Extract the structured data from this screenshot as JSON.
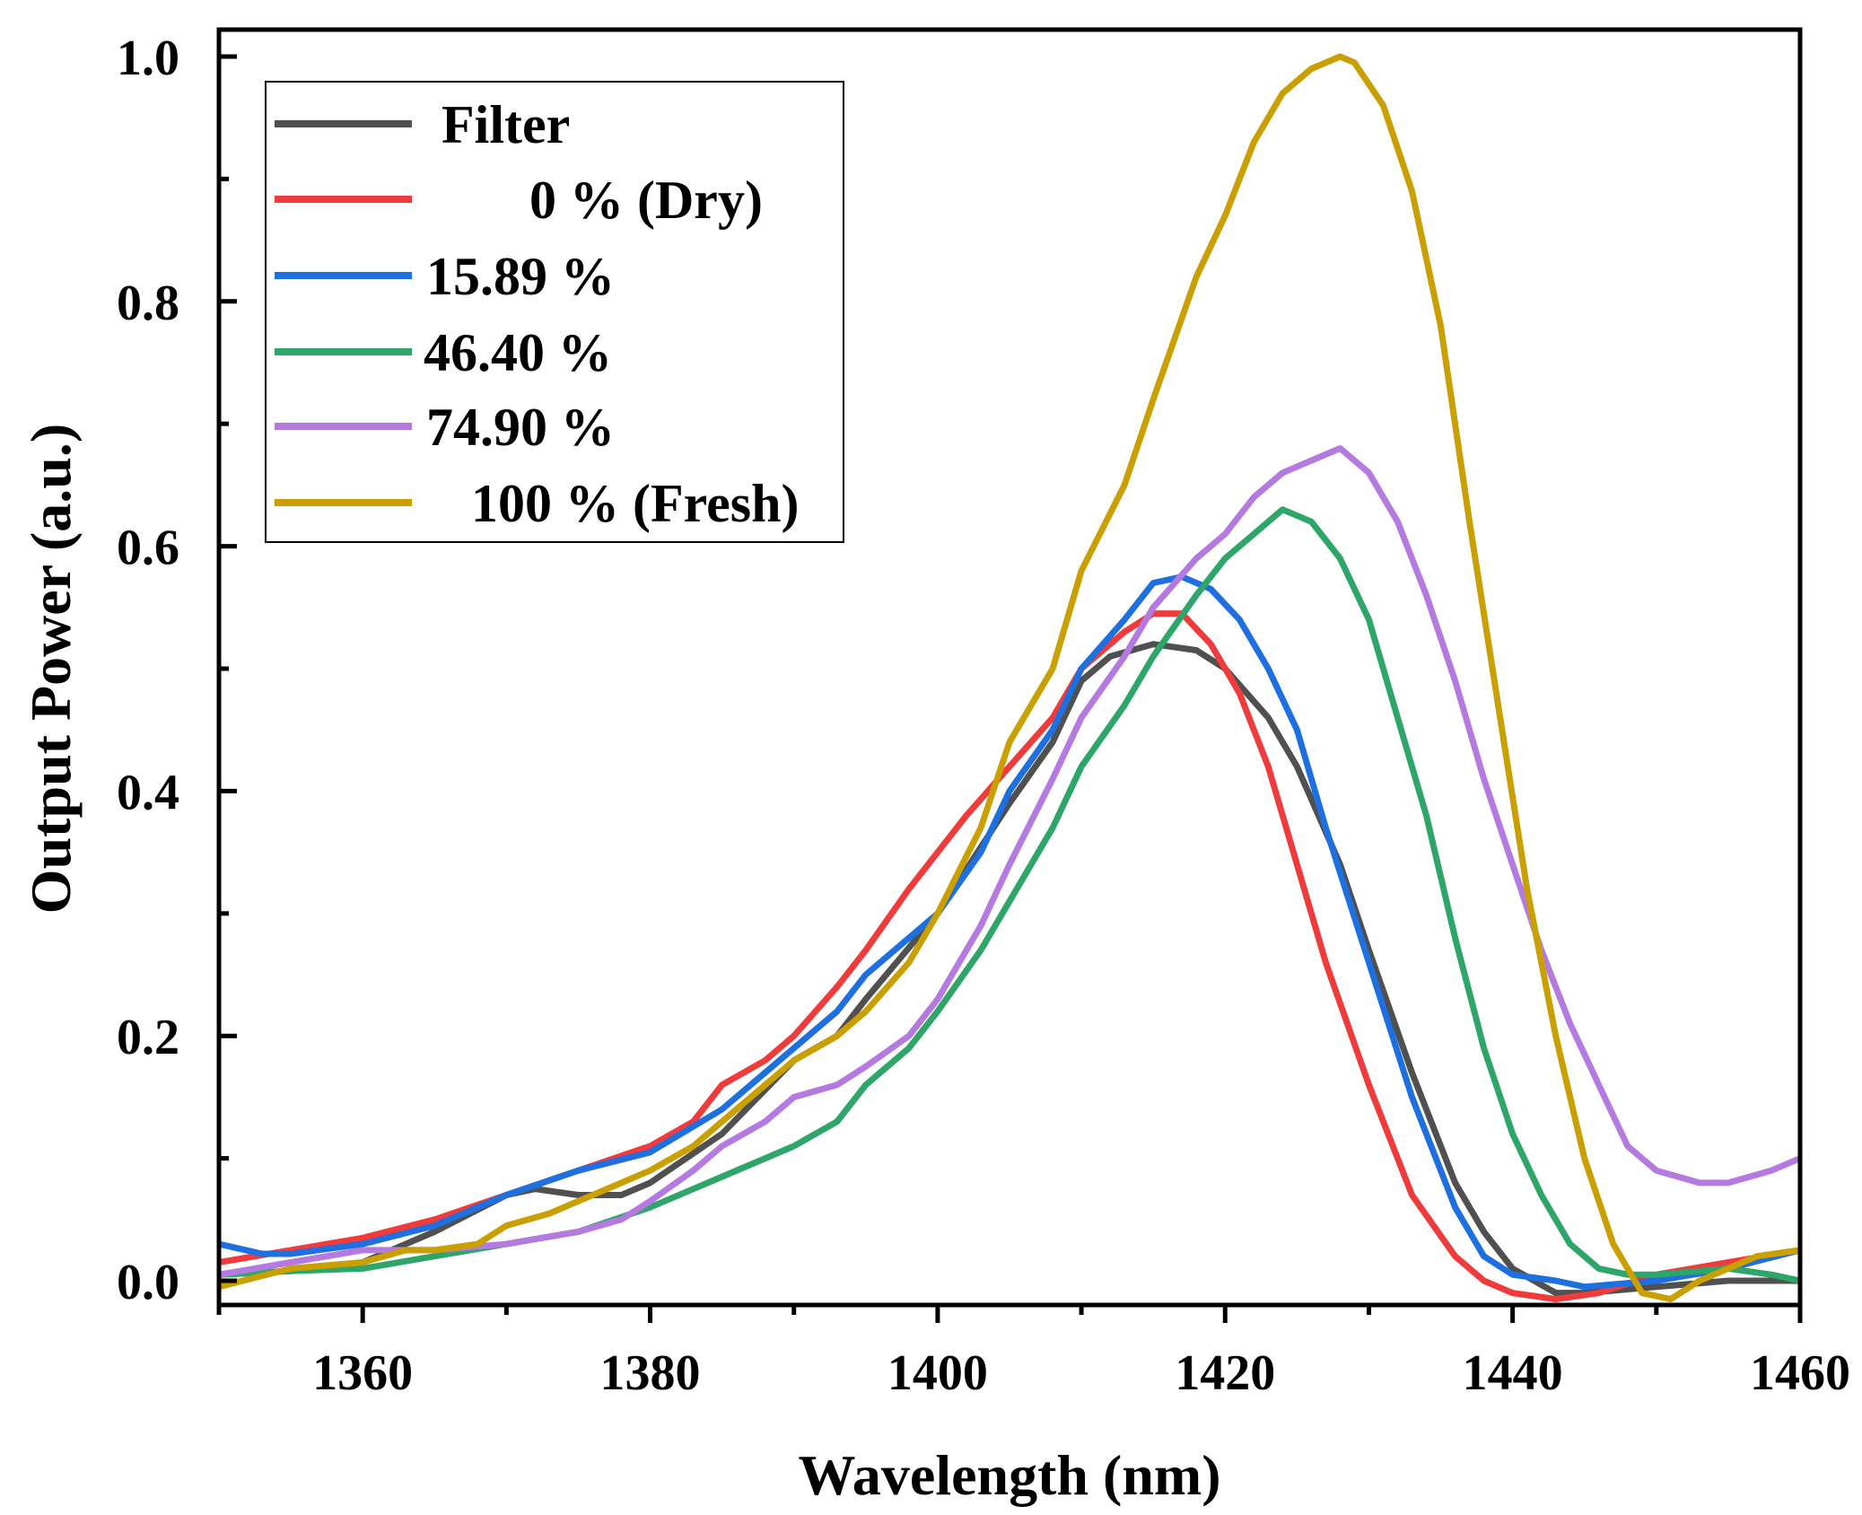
{
  "chart_data": {
    "type": "line",
    "title": "",
    "xlabel": "Wavelength (nm)",
    "ylabel": "Output Power (a.u.)",
    "xlim": [
      1350,
      1460
    ],
    "ylim": [
      -0.02,
      1.02
    ],
    "xticks": [
      1360,
      1380,
      1400,
      1420,
      1440,
      1460
    ],
    "xtick_labels": [
      "1360",
      "1380",
      "1400",
      "1420",
      "1440",
      "1460"
    ],
    "yticks": [
      0.0,
      0.2,
      0.4,
      0.6,
      0.8,
      1.0
    ],
    "ytick_labels": [
      "0.0",
      "0.2",
      "0.4",
      "0.6",
      "0.8",
      "1.0"
    ],
    "grid": false,
    "legend_placement": "top-left",
    "series": [
      {
        "name": "Filter",
        "color": "#505050",
        "x": [
          1350,
          1355,
          1360,
          1365,
          1370,
          1372,
          1375,
          1378,
          1380,
          1385,
          1390,
          1393,
          1395,
          1400,
          1405,
          1408,
          1410,
          1412,
          1415,
          1418,
          1420,
          1423,
          1425,
          1428,
          1430,
          1433,
          1436,
          1438,
          1440,
          1443,
          1445,
          1450,
          1455,
          1460
        ],
        "y": [
          0.005,
          0.008,
          0.015,
          0.04,
          0.07,
          0.075,
          0.07,
          0.07,
          0.08,
          0.12,
          0.18,
          0.2,
          0.23,
          0.3,
          0.39,
          0.44,
          0.49,
          0.51,
          0.52,
          0.515,
          0.5,
          0.46,
          0.42,
          0.34,
          0.27,
          0.17,
          0.08,
          0.04,
          0.01,
          -0.01,
          -0.01,
          -0.005,
          0,
          0
        ]
      },
      {
        "name": "0 % (Dry)",
        "color": "#ef3b3b",
        "x": [
          1350,
          1355,
          1360,
          1365,
          1370,
          1375,
          1380,
          1383,
          1385,
          1388,
          1390,
          1393,
          1395,
          1398,
          1400,
          1402,
          1405,
          1408,
          1410,
          1413,
          1415,
          1417,
          1419,
          1421,
          1423,
          1425,
          1427,
          1430,
          1433,
          1436,
          1438,
          1440,
          1443,
          1446,
          1450,
          1455,
          1460
        ],
        "y": [
          0.015,
          0.025,
          0.035,
          0.05,
          0.07,
          0.09,
          0.11,
          0.13,
          0.16,
          0.18,
          0.2,
          0.24,
          0.27,
          0.32,
          0.35,
          0.38,
          0.42,
          0.46,
          0.5,
          0.53,
          0.545,
          0.545,
          0.52,
          0.48,
          0.42,
          0.34,
          0.26,
          0.16,
          0.07,
          0.02,
          0,
          -0.01,
          -0.015,
          -0.01,
          0.005,
          0.015,
          0.025
        ]
      },
      {
        "name": "15.89 %",
        "color": "#1e6fe0",
        "x": [
          1350,
          1353,
          1355,
          1360,
          1365,
          1370,
          1375,
          1380,
          1385,
          1388,
          1390,
          1393,
          1395,
          1398,
          1400,
          1403,
          1405,
          1408,
          1410,
          1413,
          1415,
          1417,
          1419,
          1421,
          1423,
          1425,
          1427,
          1430,
          1433,
          1436,
          1438,
          1440,
          1443,
          1445,
          1450,
          1455,
          1460
        ],
        "y": [
          0.03,
          0.022,
          0.022,
          0.03,
          0.045,
          0.07,
          0.09,
          0.105,
          0.14,
          0.17,
          0.19,
          0.22,
          0.25,
          0.28,
          0.3,
          0.35,
          0.4,
          0.45,
          0.5,
          0.54,
          0.57,
          0.575,
          0.565,
          0.54,
          0.5,
          0.45,
          0.37,
          0.26,
          0.15,
          0.06,
          0.02,
          0.005,
          0,
          -0.005,
          0,
          0.01,
          0.025
        ]
      },
      {
        "name": "46.40 %",
        "color": "#2ea66a",
        "x": [
          1350,
          1355,
          1360,
          1365,
          1370,
          1375,
          1380,
          1385,
          1388,
          1390,
          1393,
          1395,
          1398,
          1400,
          1403,
          1405,
          1408,
          1410,
          1413,
          1415,
          1418,
          1420,
          1422,
          1424,
          1426,
          1428,
          1430,
          1432,
          1434,
          1436,
          1438,
          1440,
          1442,
          1444,
          1446,
          1448,
          1450,
          1455,
          1458,
          1460
        ],
        "y": [
          0.005,
          0.008,
          0.01,
          0.02,
          0.03,
          0.04,
          0.06,
          0.085,
          0.1,
          0.11,
          0.13,
          0.16,
          0.19,
          0.22,
          0.27,
          0.31,
          0.37,
          0.42,
          0.47,
          0.51,
          0.56,
          0.59,
          0.61,
          0.63,
          0.62,
          0.59,
          0.54,
          0.46,
          0.38,
          0.28,
          0.19,
          0.12,
          0.07,
          0.03,
          0.01,
          0.005,
          0.005,
          0.01,
          0.005,
          0
        ]
      },
      {
        "name": "74.90 %",
        "color": "#b57ae0",
        "x": [
          1350,
          1355,
          1360,
          1365,
          1370,
          1375,
          1378,
          1380,
          1383,
          1385,
          1388,
          1390,
          1393,
          1395,
          1398,
          1400,
          1403,
          1405,
          1408,
          1410,
          1413,
          1415,
          1418,
          1420,
          1422,
          1424,
          1426,
          1428,
          1430,
          1432,
          1434,
          1436,
          1438,
          1440,
          1442,
          1444,
          1446,
          1448,
          1450,
          1453,
          1455,
          1458,
          1460
        ],
        "y": [
          0.005,
          0.015,
          0.025,
          0.025,
          0.03,
          0.04,
          0.05,
          0.065,
          0.09,
          0.11,
          0.13,
          0.15,
          0.16,
          0.175,
          0.2,
          0.23,
          0.29,
          0.34,
          0.41,
          0.46,
          0.51,
          0.55,
          0.59,
          0.61,
          0.64,
          0.66,
          0.67,
          0.68,
          0.66,
          0.62,
          0.56,
          0.49,
          0.41,
          0.34,
          0.27,
          0.21,
          0.16,
          0.11,
          0.09,
          0.08,
          0.08,
          0.09,
          0.1
        ]
      },
      {
        "name": "100 % (Fresh)",
        "color": "#c9a000",
        "x": [
          1350,
          1355,
          1360,
          1363,
          1365,
          1368,
          1370,
          1373,
          1375,
          1378,
          1380,
          1383,
          1385,
          1388,
          1390,
          1393,
          1395,
          1398,
          1400,
          1403,
          1405,
          1408,
          1410,
          1413,
          1415,
          1418,
          1420,
          1422,
          1424,
          1426,
          1428,
          1429,
          1431,
          1433,
          1435,
          1437,
          1439,
          1441,
          1443,
          1445,
          1447,
          1449,
          1451,
          1453,
          1455,
          1457,
          1460
        ],
        "y": [
          -0.005,
          0.01,
          0.015,
          0.025,
          0.025,
          0.03,
          0.045,
          0.055,
          0.065,
          0.08,
          0.09,
          0.11,
          0.13,
          0.16,
          0.18,
          0.2,
          0.22,
          0.26,
          0.3,
          0.37,
          0.44,
          0.5,
          0.58,
          0.65,
          0.72,
          0.82,
          0.87,
          0.93,
          0.97,
          0.99,
          1.0,
          0.995,
          0.96,
          0.89,
          0.78,
          0.62,
          0.47,
          0.32,
          0.2,
          0.1,
          0.03,
          -0.01,
          -0.015,
          0,
          0.01,
          0.02,
          0.025
        ]
      }
    ]
  }
}
